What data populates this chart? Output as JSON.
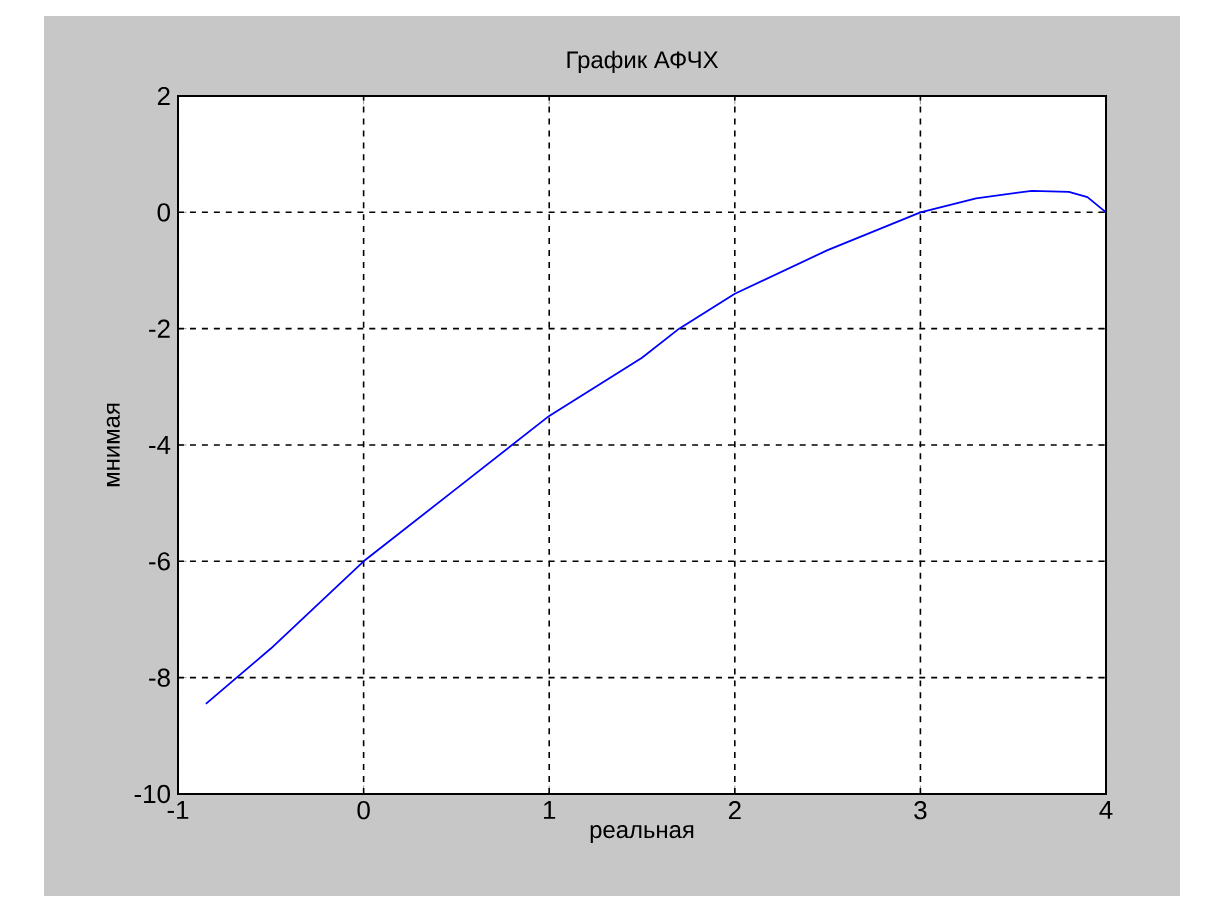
{
  "chart_data": {
    "type": "line",
    "title": "График АФЧХ",
    "xlabel": "реальная",
    "ylabel": "мнимая",
    "series": [
      {
        "color": "#0000ff",
        "x": [
          -0.85,
          -0.5,
          0,
          0.5,
          1,
          1.5,
          1.7,
          2,
          2.5,
          3,
          3.3,
          3.6,
          3.8,
          3.9,
          4
        ],
        "values": [
          -8.45,
          -7.5,
          -6,
          -4.75,
          -3.5,
          -2.5,
          -2,
          -1.4,
          -0.65,
          0,
          0.24,
          0.37,
          0.35,
          0.26,
          0
        ]
      }
    ],
    "xlim": [
      -1,
      4
    ],
    "ylim": [
      -10,
      2
    ],
    "xticks": [
      -1,
      0,
      1,
      2,
      3,
      4
    ],
    "yticks": [
      -10,
      -8,
      -6,
      -4,
      -2,
      0,
      2
    ],
    "grid": true,
    "line_style": "solid",
    "marker": "none"
  }
}
